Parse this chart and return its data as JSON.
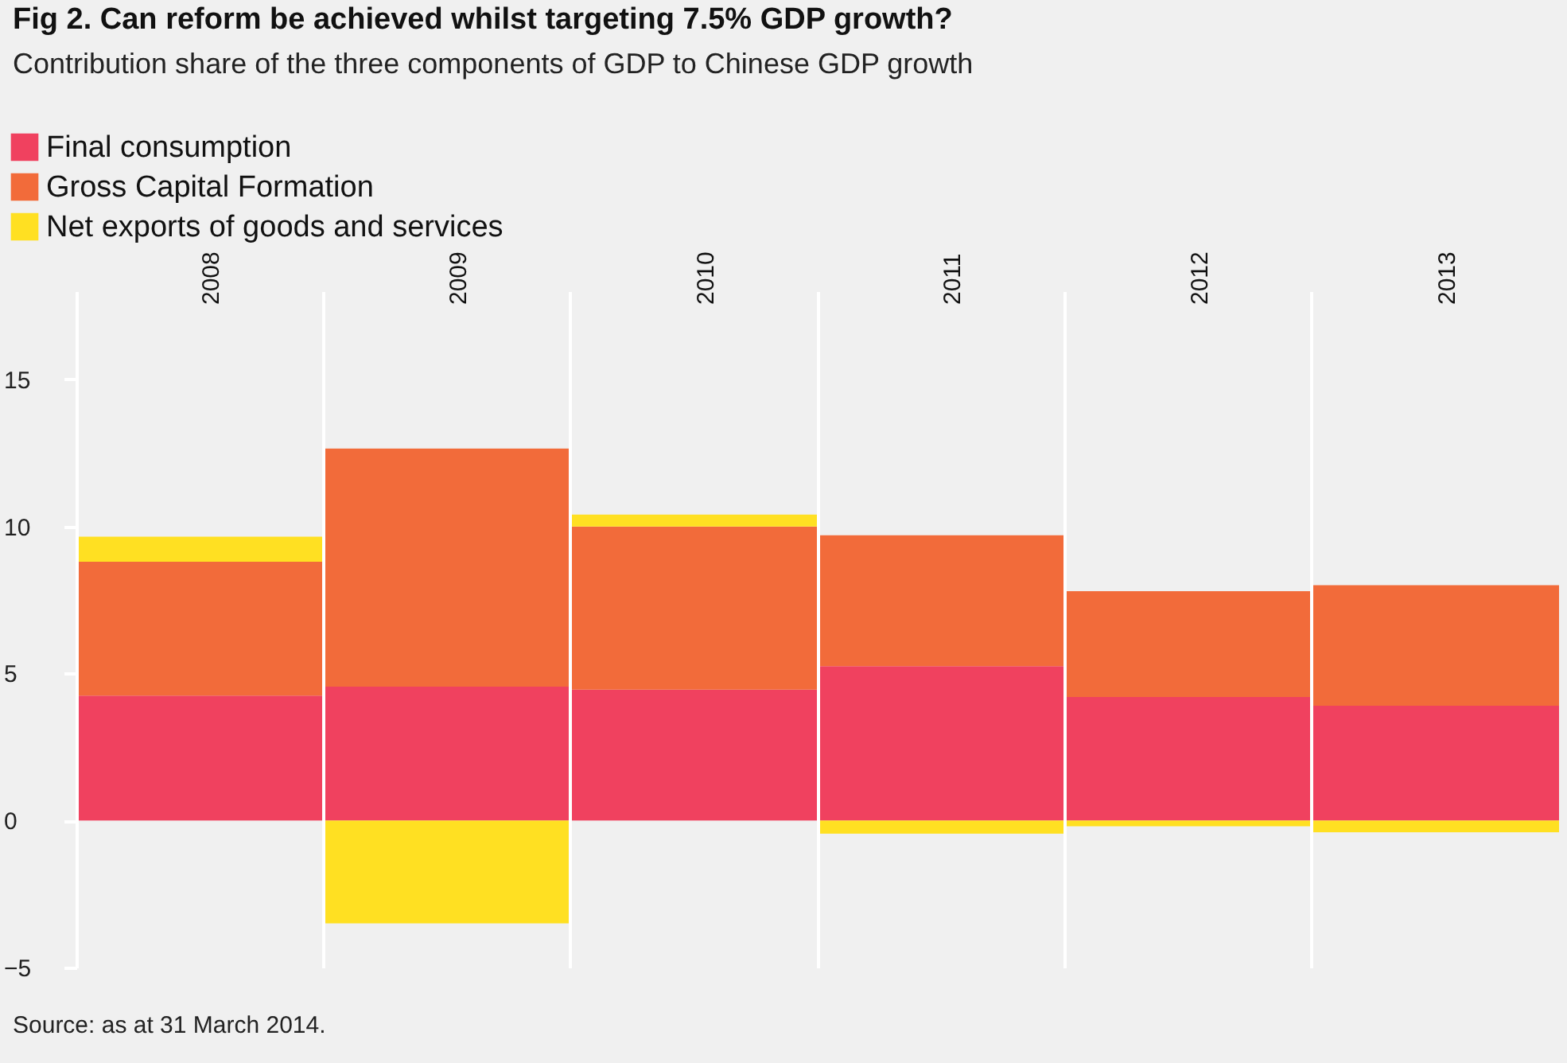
{
  "chart_data": {
    "type": "bar",
    "stacked": true,
    "title": "Fig 2. Can reform be achieved whilst targeting 7.5% GDP growth?",
    "subtitle": "Contribution share of the three components of GDP to Chinese GDP growth",
    "categories": [
      "2008",
      "2009",
      "2010",
      "2011",
      "2012",
      "2013"
    ],
    "series": [
      {
        "name": "Final consumption",
        "color": "#f0415f",
        "values": [
          4.25,
          4.55,
          4.45,
          5.25,
          4.2,
          3.9
        ]
      },
      {
        "name": "Gross Capital Formation",
        "color": "#f26b3a",
        "values": [
          4.55,
          8.1,
          5.55,
          4.45,
          3.6,
          4.1
        ]
      },
      {
        "name": "Net exports of goods and services",
        "color": "#ffe022",
        "values": [
          0.85,
          -3.5,
          0.4,
          -0.45,
          -0.2,
          -0.4
        ]
      }
    ],
    "ylim": [
      -5,
      18
    ],
    "yticks": [
      -5,
      0,
      5,
      10,
      15
    ],
    "grid": "x",
    "legend": "top left",
    "annotations": [
      "Source: as at 31 March 2014."
    ]
  }
}
